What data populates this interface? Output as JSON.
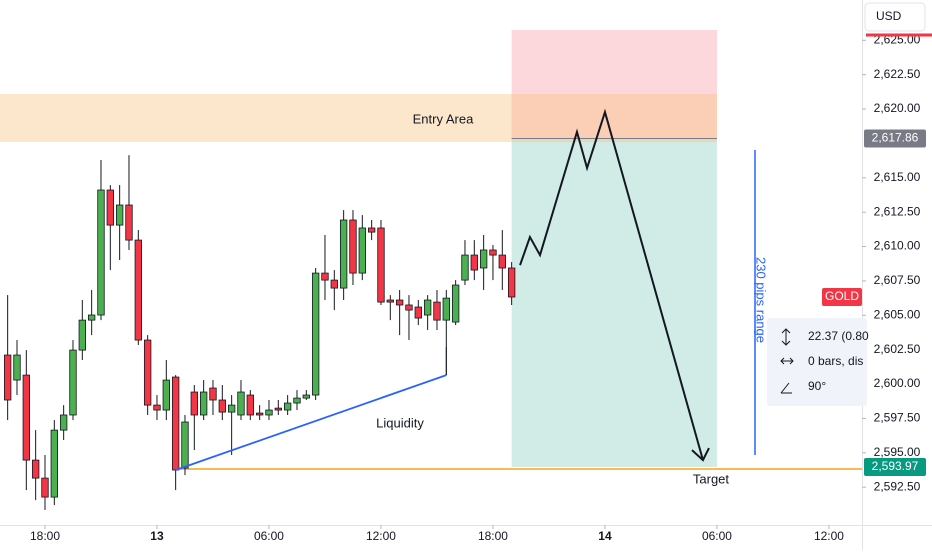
{
  "chart_data": {
    "type": "candlestick",
    "symbol": "GOLD",
    "currency": "USD",
    "colors": {
      "up": "#4caf50",
      "down": "#f23645",
      "outline": "#131722"
    },
    "x": [
      16.0,
      16.5,
      17.0,
      17.5,
      18.0,
      18.5,
      19.0,
      19.5,
      20.0,
      20.5,
      21.0,
      21.5,
      22.0,
      22.5,
      23.0,
      23.5,
      24.0,
      24.5,
      25.0,
      25.5,
      26.0,
      26.5,
      27.0,
      27.5,
      28.0,
      28.5,
      29.0,
      29.5,
      30.0,
      30.5,
      31.0,
      31.5,
      32.0,
      32.5,
      33.0,
      33.5,
      34.0,
      34.5,
      35.0,
      35.5,
      36.0,
      36.5,
      37.0,
      37.5,
      38.0,
      38.5,
      39.0,
      39.5,
      40.0,
      40.5,
      41.0,
      41.5,
      42.0,
      42.5,
      43.0
    ],
    "open": [
      2602.11,
      2600.29,
      2600.65,
      2594.47,
      2593.16,
      2591.78,
      2596.65,
      2597.75,
      2602.47,
      2604.65,
      2605.02,
      2614.11,
      2611.56,
      2613.02,
      2610.47,
      2603.2,
      2598.47,
      2598.11,
      2600.51,
      2593.89,
      2599.42,
      2597.75,
      2599.71,
      2598.84,
      2597.96,
      2597.75,
      2599.2,
      2597.89,
      2597.75,
      2598.25,
      2598.11,
      2598.62,
      2598.98,
      2599.2,
      2608.07,
      2607.56,
      2606.98,
      2611.93,
      2608.07,
      2611.35,
      2611.35,
      2606.11,
      2606.11,
      2605.75,
      2605.6,
      2605.02,
      2605.96,
      2604.65,
      2604.51,
      2607.56,
      2609.38,
      2608.44,
      2609.75,
      2609.38,
      2608.44
    ],
    "high": [
      2606.47,
      2603.2,
      2602.47,
      2596.65,
      2594.84,
      2597.38,
      2598.47,
      2603.2,
      2606.11,
      2606.84,
      2616.29,
      2614.47,
      2614.47,
      2616.65,
      2611.2,
      2603.56,
      2599.2,
      2601.75,
      2600.65,
      2597.75,
      2599.93,
      2600.29,
      2600.29,
      2599.93,
      2599.2,
      2600.29,
      2599.56,
      2598.47,
      2598.84,
      2598.84,
      2599.2,
      2599.56,
      2599.56,
      2608.44,
      2610.84,
      2608.29,
      2612.65,
      2612.65,
      2612.29,
      2611.93,
      2611.93,
      2606.47,
      2606.84,
      2606.47,
      2606.11,
      2606.47,
      2606.84,
      2606.84,
      2607.56,
      2610.47,
      2610.47,
      2610.84,
      2610.11,
      2611.2,
      2608.87
    ],
    "low": [
      2597.38,
      2599.2,
      2592.29,
      2591.56,
      2590.84,
      2591.2,
      2595.93,
      2597.38,
      2601.75,
      2603.56,
      2604.65,
      2608.29,
      2609.02,
      2609.75,
      2602.84,
      2597.75,
      2597.38,
      2597.38,
      2592.29,
      2593.38,
      2595.2,
      2597.38,
      2597.75,
      2597.38,
      2594.84,
      2597.38,
      2597.38,
      2597.38,
      2597.38,
      2597.75,
      2597.75,
      2598.11,
      2598.84,
      2598.84,
      2606.11,
      2605.38,
      2606.11,
      2607.2,
      2607.56,
      2610.47,
      2605.75,
      2604.65,
      2603.56,
      2603.2,
      2604.29,
      2603.93,
      2603.93,
      2600.65,
      2604.29,
      2607.2,
      2607.56,
      2606.84,
      2607.56,
      2606.84,
      2605.75
    ],
    "close": [
      2598.84,
      2602.11,
      2594.47,
      2593.16,
      2591.78,
      2596.65,
      2597.75,
      2602.47,
      2604.65,
      2605.02,
      2614.11,
      2611.56,
      2613.02,
      2610.47,
      2603.2,
      2598.47,
      2598.11,
      2600.29,
      2593.75,
      2597.24,
      2597.75,
      2599.42,
      2598.84,
      2597.96,
      2598.47,
      2599.42,
      2597.75,
      2597.75,
      2598.11,
      2598.11,
      2598.62,
      2598.98,
      2599.2,
      2608.07,
      2607.56,
      2606.98,
      2611.93,
      2608.07,
      2611.35,
      2611.05,
      2605.96,
      2605.96,
      2605.75,
      2605.38,
      2604.8,
      2606.11,
      2604.65,
      2606.25,
      2607.2,
      2609.38,
      2608.29,
      2609.75,
      2609.38,
      2608.44,
      2606.33
    ],
    "xlim": [
      15.59,
      61.77
    ],
    "ylim": [
      2589.75,
      2627.93
    ],
    "xticks": [
      {
        "value": 18,
        "label": "18:00"
      },
      {
        "value": 24,
        "label": "13"
      },
      {
        "value": 30,
        "label": "06:00"
      },
      {
        "value": 36,
        "label": "12:00"
      },
      {
        "value": 42,
        "label": "18:00"
      },
      {
        "value": 48,
        "label": "14"
      },
      {
        "value": 54,
        "label": "06:00"
      },
      {
        "value": 60,
        "label": "12:00"
      }
    ],
    "yticks": [
      {
        "value": 2625,
        "label": "2,625.00"
      },
      {
        "value": 2622.5,
        "label": "2,622.50"
      },
      {
        "value": 2620,
        "label": "2,620.00"
      },
      {
        "value": 2615,
        "label": "2,615.00"
      },
      {
        "value": 2612.5,
        "label": "2,612.50"
      },
      {
        "value": 2610,
        "label": "2,610.00"
      },
      {
        "value": 2607.5,
        "label": "2,607.50"
      },
      {
        "value": 2605,
        "label": "2,605.00"
      },
      {
        "value": 2602.5,
        "label": "2,602.50"
      },
      {
        "value": 2600,
        "label": "2,600.00"
      },
      {
        "value": 2597.5,
        "label": "2,597.50"
      },
      {
        "value": 2595,
        "label": "2,595.00"
      },
      {
        "value": 2592.5,
        "label": "2,592.50"
      }
    ],
    "entry_area": {
      "label": "Entry Area",
      "top": 2621.09,
      "bottom": 2617.6
    },
    "position": {
      "x": [
        43.0,
        54.0
      ],
      "stop": 2625.75,
      "entry": {
        "value": 2617.86,
        "label": "2,617.86"
      },
      "target": {
        "value": 2593.97,
        "label": "2,593.97"
      }
    },
    "liquidity": {
      "label": "Liquidity",
      "x": [
        25.0,
        39.5
      ],
      "values": [
        2593.75,
        2600.65
      ]
    },
    "projection": {
      "x": [
        43.45,
        43.98,
        44.52,
        46.5,
        47.04,
        48.0,
        53.25
      ],
      "values": [
        2608.65,
        2610.69,
        2609.38,
        2618.33,
        2615.71,
        2619.78,
        2594.47
      ]
    },
    "target_label": "Target",
    "range_label": "230 pips range",
    "measure": [
      "22.37 (0.80",
      "0 bars, dis",
      "90°"
    ]
  }
}
